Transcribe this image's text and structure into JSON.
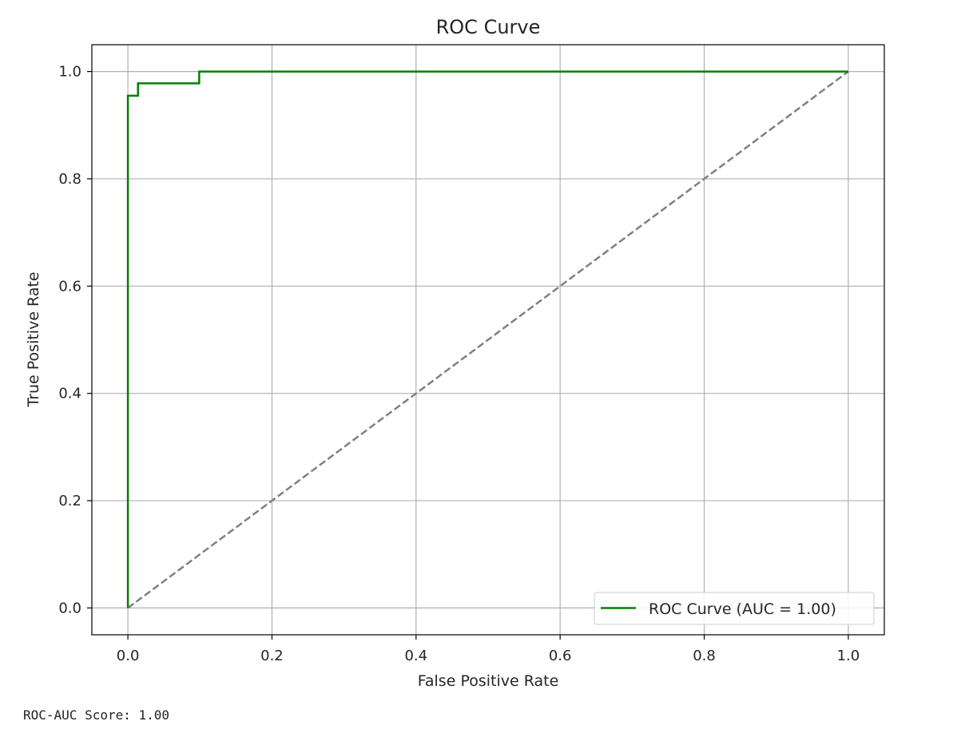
{
  "chart_data": {
    "type": "line",
    "title": "ROC Curve",
    "xlabel": "False Positive Rate",
    "ylabel": "True Positive Rate",
    "xlim": [
      -0.05,
      1.05
    ],
    "ylim": [
      -0.05,
      1.05
    ],
    "xticks": [
      "0.0",
      "0.2",
      "0.4",
      "0.6",
      "0.8",
      "1.0"
    ],
    "yticks": [
      "0.0",
      "0.2",
      "0.4",
      "0.6",
      "0.8",
      "1.0"
    ],
    "grid": true,
    "legend_position": "lower-right",
    "series": [
      {
        "name": "ROC Curve (AUC = 1.00)",
        "color": "#008000",
        "style": "solid",
        "x": [
          0.0,
          0.0,
          0.014,
          0.014,
          0.099,
          0.099,
          1.0
        ],
        "y": [
          0.0,
          0.955,
          0.955,
          0.978,
          0.978,
          1.0,
          1.0
        ]
      },
      {
        "color": "#808080",
        "style": "dashed",
        "x": [
          0.0,
          1.0
        ],
        "y": [
          0.0,
          1.0
        ]
      }
    ]
  },
  "output": {
    "score_text": "ROC-AUC Score: 1.00"
  }
}
